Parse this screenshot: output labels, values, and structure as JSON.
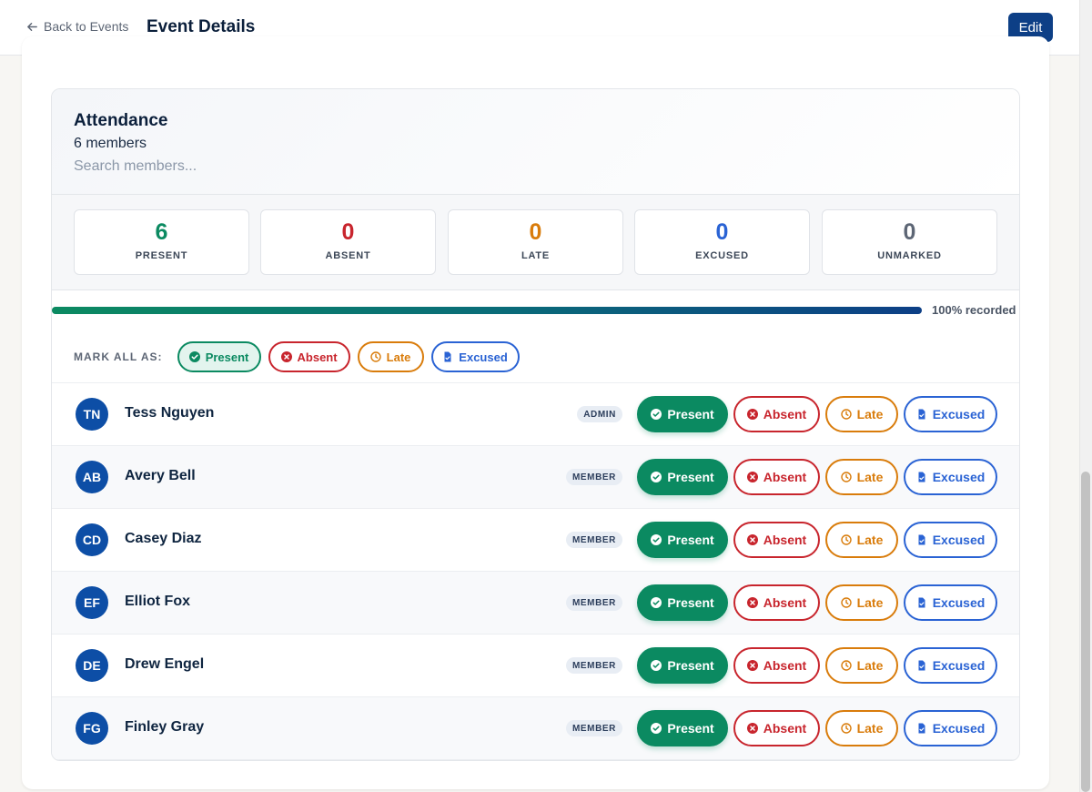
{
  "header": {
    "back_label": "Back to Events",
    "title": "Event Details",
    "edit_label": "Edit"
  },
  "attendance": {
    "title": "Attendance",
    "member_count": "6 members",
    "search_placeholder": "Search members...",
    "stats": [
      {
        "value": "6",
        "label": "PRESENT",
        "color": "#0b8a61"
      },
      {
        "value": "0",
        "label": "ABSENT",
        "color": "#c8252d"
      },
      {
        "value": "0",
        "label": "LATE",
        "color": "#d97c0b"
      },
      {
        "value": "0",
        "label": "EXCUSED",
        "color": "#2a63d4"
      },
      {
        "value": "0",
        "label": "UNMARKED",
        "color": "#5d6675"
      }
    ],
    "progress_fraction": 1.0,
    "progress_label": "100% recorded",
    "mark_all": {
      "label": "MARK ALL AS:",
      "buttons": [
        {
          "label": "Present",
          "icon": "check-circle-icon",
          "color": "#0b8a61"
        },
        {
          "label": "Absent",
          "icon": "x-circle-icon",
          "color": "#c8252d"
        },
        {
          "label": "Late",
          "icon": "clock-icon",
          "color": "#d97c0b"
        },
        {
          "label": "Excused",
          "icon": "document-icon",
          "color": "#2a63d4"
        }
      ]
    },
    "status_labels": {
      "present": "Present",
      "absent": "Absent",
      "late": "Late",
      "excused": "Excused"
    },
    "members": [
      {
        "initials": "TN",
        "name": "Tess Nguyen",
        "role": "ADMIN",
        "status": "present"
      },
      {
        "initials": "AB",
        "name": "Avery Bell",
        "role": "MEMBER",
        "status": "present"
      },
      {
        "initials": "CD",
        "name": "Casey Diaz",
        "role": "MEMBER",
        "status": "present"
      },
      {
        "initials": "EF",
        "name": "Elliot Fox",
        "role": "MEMBER",
        "status": "present"
      },
      {
        "initials": "DE",
        "name": "Drew Engel",
        "role": "MEMBER",
        "status": "present"
      },
      {
        "initials": "FG",
        "name": "Finley Gray",
        "role": "MEMBER",
        "status": "present"
      }
    ]
  },
  "colors": {
    "brand": "#0d3f86",
    "present": "#0b8a61",
    "absent": "#c8252d",
    "late": "#d97c0b",
    "excused": "#2a63d4"
  }
}
